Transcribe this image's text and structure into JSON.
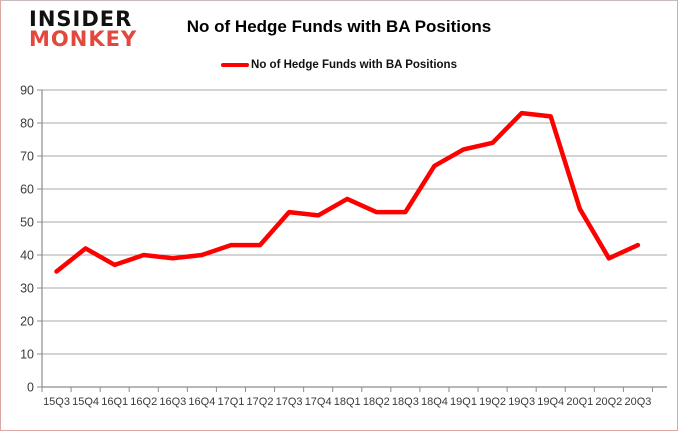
{
  "logo": {
    "line1": "INSIDER",
    "line2": "MONKEY"
  },
  "header": {
    "title": "No of Hedge Funds with BA Positions"
  },
  "legend": {
    "label": "No of Hedge Funds with BA Positions"
  },
  "colors": {
    "line": "#ff0000",
    "grid": "#a8a8a8",
    "axis": "#8c8c8c",
    "tick_text": "#3a3a3a",
    "logo_red": "#e2483d",
    "border": "#dba8a4"
  },
  "chart_data": {
    "type": "line",
    "title": "No of Hedge Funds with BA Positions",
    "categories": [
      "15Q3",
      "15Q4",
      "16Q1",
      "16Q2",
      "16Q3",
      "16Q4",
      "17Q1",
      "17Q2",
      "17Q3",
      "17Q4",
      "18Q1",
      "18Q2",
      "18Q3",
      "18Q4",
      "19Q1",
      "19Q2",
      "19Q3",
      "19Q4",
      "20Q1",
      "20Q2",
      "20Q3"
    ],
    "series": [
      {
        "name": "No of Hedge Funds with BA Positions",
        "color": "#ff0000",
        "values": [
          35,
          42,
          37,
          40,
          39,
          40,
          43,
          43,
          53,
          52,
          57,
          53,
          53,
          67,
          72,
          74,
          83,
          82,
          54,
          39,
          43
        ]
      }
    ],
    "xlabel": "",
    "ylabel": "",
    "ylim": [
      0,
      90
    ],
    "ytick_step": 10,
    "grid": true,
    "legend_position": "top-center"
  }
}
